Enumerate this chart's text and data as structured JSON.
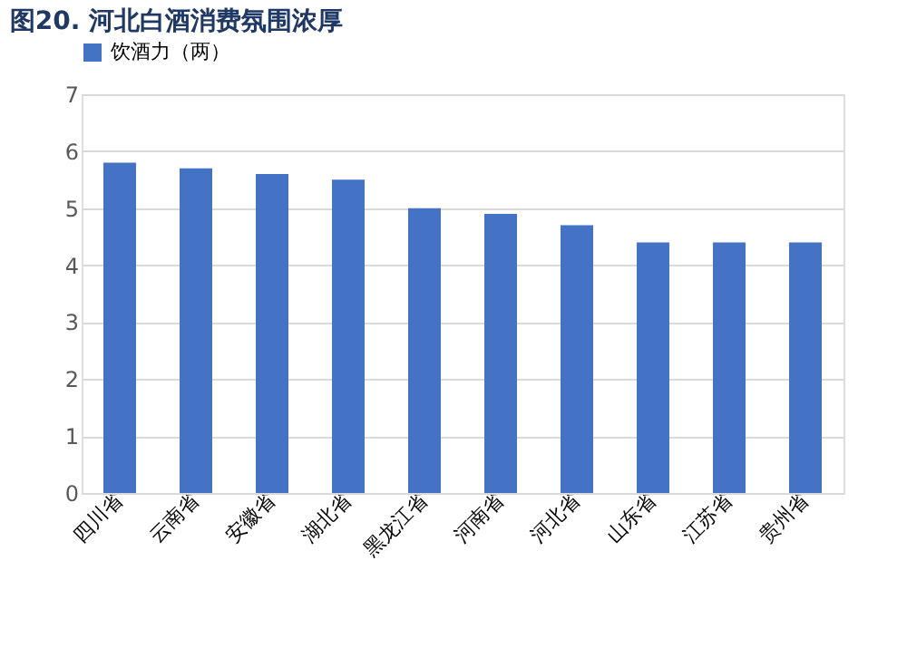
{
  "chart_data": {
    "type": "bar",
    "title": "图20. 河北白酒消费氛围浓厚",
    "categories": [
      "四川省",
      "云南省",
      "安徽省",
      "湖北省",
      "黑龙江省",
      "河南省",
      "河北省",
      "山东省",
      "江苏省",
      "贵州省"
    ],
    "series": [
      {
        "name": "饮酒力（两）",
        "color": "#4472c4",
        "values": [
          5.8,
          5.7,
          5.6,
          5.5,
          5.0,
          4.9,
          4.7,
          4.4,
          4.4,
          4.4
        ]
      }
    ],
    "ylim": [
      0,
      7
    ],
    "yticks": [
      0,
      1,
      2,
      3,
      4,
      5,
      6,
      7
    ],
    "grid": "y",
    "legend": "top"
  }
}
